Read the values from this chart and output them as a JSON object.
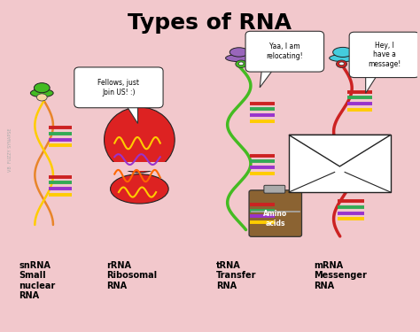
{
  "title": "Types of RNA",
  "bg_color": "#f2c8cc",
  "title_fontsize": 18,
  "watermark": "VB  FUZZY SYNAPSE",
  "stripe_colors_snrna": [
    "#ffcc00",
    "#9933cc",
    "#33aa55",
    "#cc2222"
  ],
  "stripe_colors_trna": [
    "#ffcc00",
    "#9933cc",
    "#33aa55",
    "#cc2222"
  ],
  "stripe_colors_mrna": [
    "#ffcc00",
    "#9933cc",
    "#33aa55",
    "#cc2222"
  ],
  "label_snrna": "snRNA\nSmall\nnuclear\nRNA",
  "label_rrna": "rRNA\nRibosomal\nRNA",
  "label_trna": "tRNA\nTransfer\nRNA",
  "label_mrna": "mRNA\nMessenger\nRNA",
  "bubble_rrna": "Fellows, just\nJoin US! :)",
  "bubble_trna": "Yaa, I am\nrelocating!",
  "bubble_mrna": "Hey, I\nhave a\nmessage!",
  "col_snrna": 0.1,
  "col_rrna": 0.32,
  "col_trna": 0.57,
  "col_mrna": 0.82
}
